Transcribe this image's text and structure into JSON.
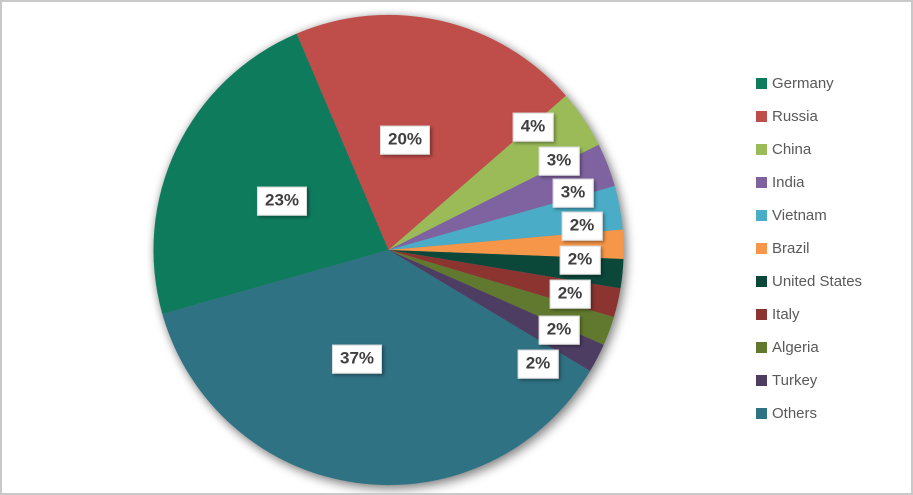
{
  "chart_data": {
    "type": "pie",
    "title": "",
    "categories": [
      "Germany",
      "Russia",
      "China",
      "India",
      "Vietnam",
      "Brazil",
      "United States",
      "Italy",
      "Algeria",
      "Turkey",
      "Others"
    ],
    "values": [
      23,
      20,
      4,
      3,
      3,
      2,
      2,
      2,
      2,
      2,
      37
    ],
    "unit": "%",
    "data_labels": [
      "23%",
      "20%",
      "4%",
      "3%",
      "3%",
      "2%",
      "2%",
      "2%",
      "2%",
      "2%",
      "37%"
    ],
    "colors": [
      "#0E7B5D",
      "#BF4D49",
      "#9BBB59",
      "#7E63A0",
      "#4AACC7",
      "#F69648",
      "#0B483A",
      "#8B3430",
      "#61792E",
      "#4D3D63",
      "#2F7284"
    ],
    "legend": [
      "Germany",
      "Russia",
      "China",
      "India",
      "Vietnam",
      "Brazil",
      "United States",
      "Italy",
      "Algeria",
      "Turkey",
      "Others"
    ],
    "legend_position": "right",
    "legend_text_color": "#595959",
    "label_text_color": "#3f3f3f"
  }
}
